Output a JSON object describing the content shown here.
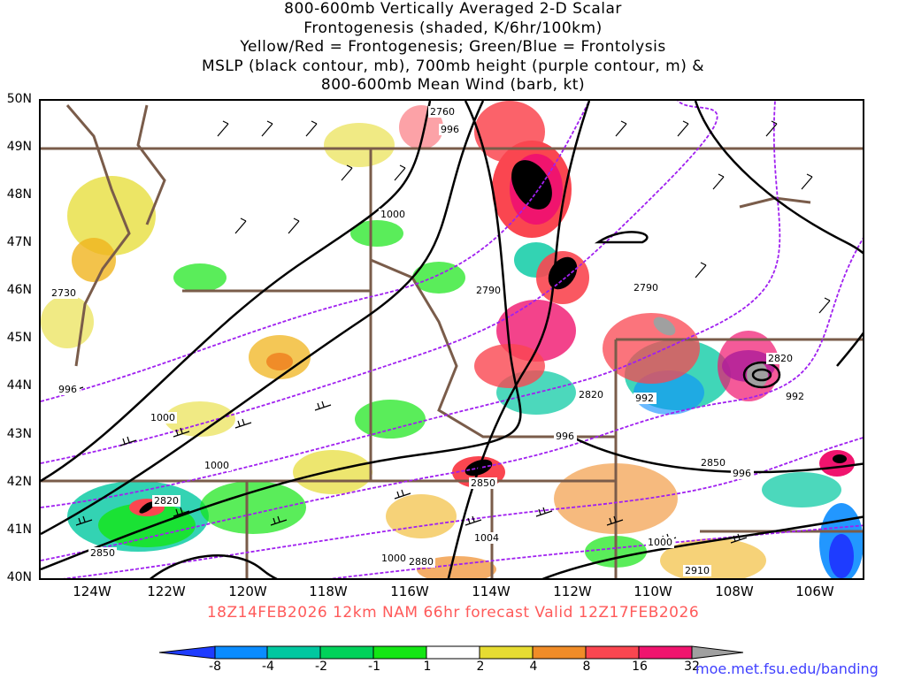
{
  "title": {
    "lines": [
      "800-600mb Vertically Averaged 2-D Scalar",
      "Frontogenesis (shaded, K/6hr/100km)",
      "Yellow/Red = Frontogenesis;  Green/Blue = Frontolysis",
      "MSLP (black contour, mb), 700mb height (purple contour, m) &",
      "800-600mb Mean Wind (barb, kt)"
    ]
  },
  "latitude_labels": [
    "50N",
    "49N",
    "48N",
    "47N",
    "46N",
    "45N",
    "44N",
    "43N",
    "42N",
    "41N",
    "40N"
  ],
  "longitude_labels": [
    "124W",
    "122W",
    "120W",
    "118W",
    "116W",
    "114W",
    "112W",
    "110W",
    "108W",
    "106W"
  ],
  "forecast_line": "18Z14FEB2026 12km NAM 66hr forecast Valid 12Z17FEB2026",
  "colorbar": {
    "ticks": [
      "-8",
      "-4",
      "-2",
      "-1",
      "1",
      "2",
      "4",
      "8",
      "16",
      "32"
    ],
    "colors": [
      "#1e3cff",
      "#0a8cff",
      "#00c8a0",
      "#00d25a",
      "#14e614",
      "#ffffff",
      "#e6dc32",
      "#f0b41e",
      "#f08c28",
      "#fa4650",
      "#f0146e",
      "#000000",
      "#a0a0a0"
    ]
  },
  "credit": "moe.met.fsu.edu/banding",
  "contour_labels": {
    "mslp": [
      "996",
      "1000",
      "996",
      "1000",
      "992",
      "996",
      "992",
      "996",
      "1000",
      "1004",
      "1000",
      "1000",
      "996"
    ],
    "height": [
      "2760",
      "2730",
      "2790",
      "2790",
      "2820",
      "2820",
      "2850",
      "2820",
      "2850",
      "2850",
      "2880",
      "2910"
    ]
  },
  "colors": {
    "mslp": "#000000",
    "height": "#a020f0",
    "borders": "#7a5c4a",
    "title_forecast": "#ff5a5a",
    "credit": "#4040ff"
  }
}
